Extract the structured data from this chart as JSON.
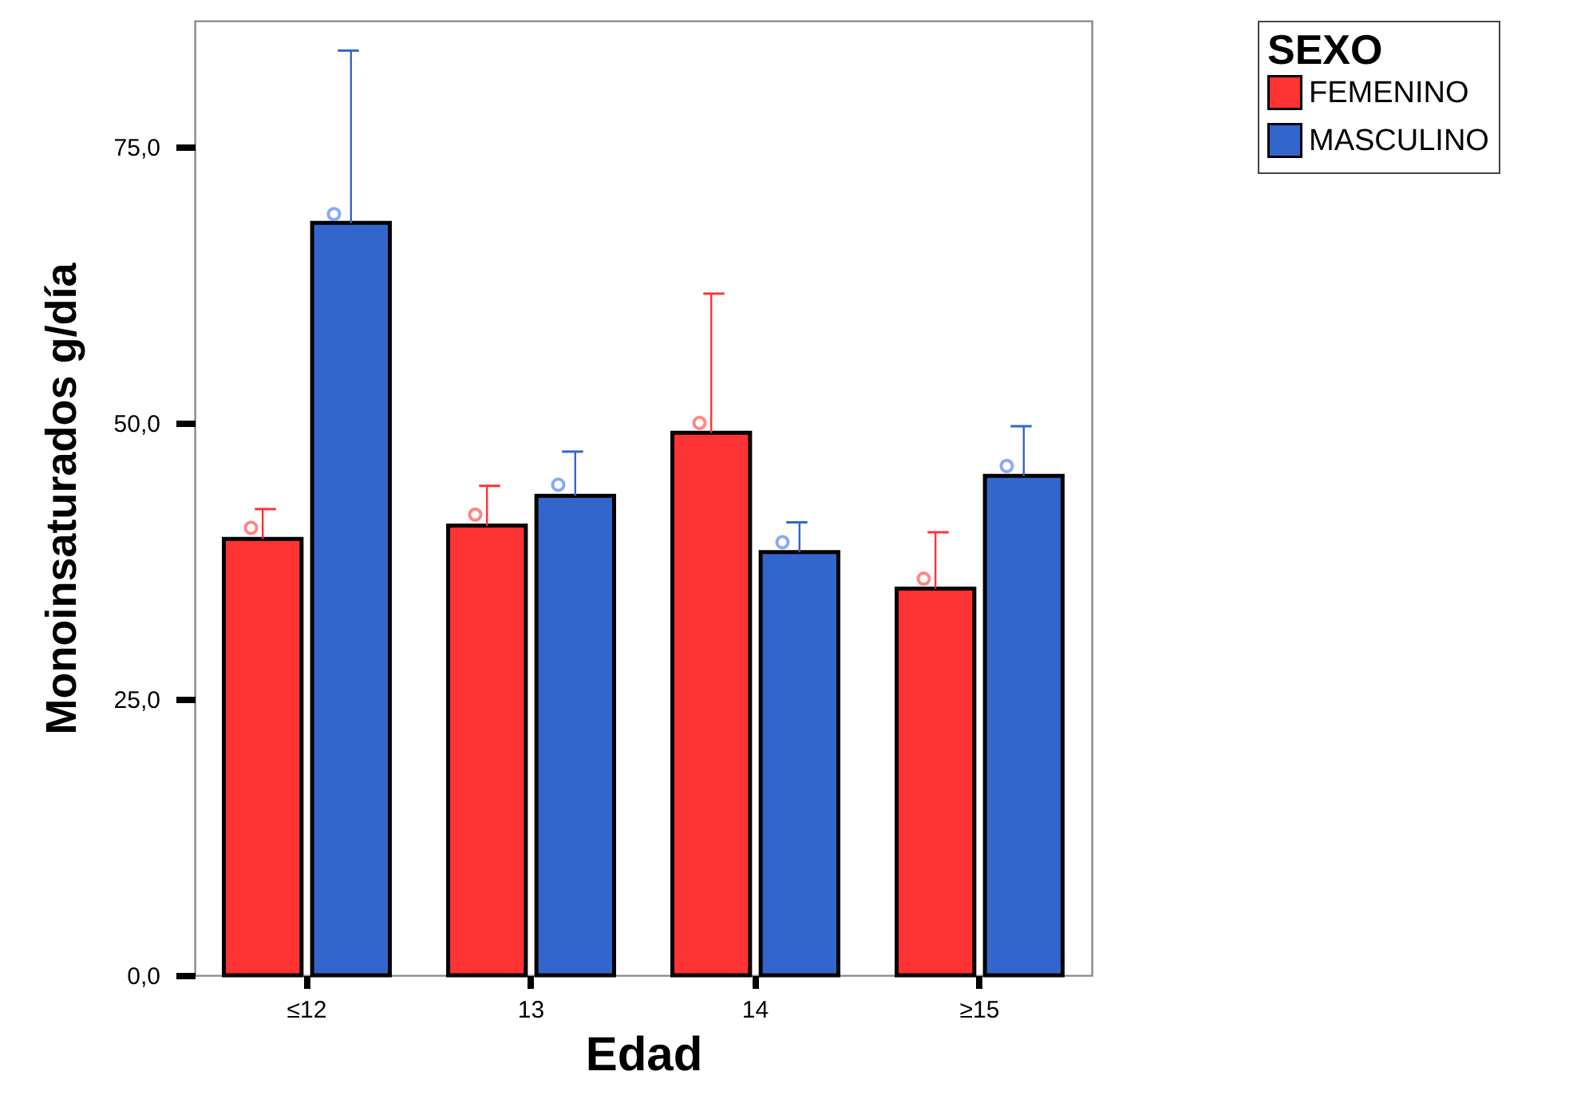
{
  "chart_data": {
    "type": "bar",
    "xlabel": "Edad",
    "ylabel": "Monoinsaturados g/día",
    "legend_title": "SEXO",
    "legend": "top right",
    "marker": "circle",
    "grid": false,
    "categories": [
      "≤12",
      "13",
      "14",
      "≥15"
    ],
    "ylim": [
      0,
      86.4
    ],
    "yticks": [
      {
        "value": 0,
        "label": "0,0"
      },
      {
        "value": 25,
        "label": "25,0"
      },
      {
        "value": 50,
        "label": "50,0"
      },
      {
        "value": 75,
        "label": "75,0"
      }
    ],
    "series": [
      {
        "name": "FEMENINO",
        "color": "#ff3333",
        "values": [
          39.5,
          40.7,
          49.1,
          35.0
        ],
        "errors": [
          [
            39.5,
            42.2
          ],
          [
            40.7,
            44.3
          ],
          [
            49.1,
            61.7
          ],
          [
            35.0,
            40.1
          ]
        ]
      },
      {
        "name": "MASCULINO",
        "color": "#3366cc",
        "values": [
          68.1,
          43.4,
          38.3,
          45.2
        ],
        "errors": [
          [
            68.1,
            83.7
          ],
          [
            43.4,
            47.4
          ],
          [
            38.3,
            41.0
          ],
          [
            45.2,
            49.7
          ]
        ]
      },
      {
        "type": "scatter",
        "color": "#ff5555",
        "x": [
          "≤12",
          "13",
          "14",
          "≥15"
        ],
        "values": [
          40.5,
          41.7,
          50.0,
          35.9
        ]
      },
      {
        "type": "scatter",
        "color": "#5588ee",
        "x": [
          "≤12",
          "13",
          "14",
          "≥15"
        ],
        "values": [
          68.9,
          44.4,
          39.2,
          46.1
        ]
      }
    ]
  }
}
